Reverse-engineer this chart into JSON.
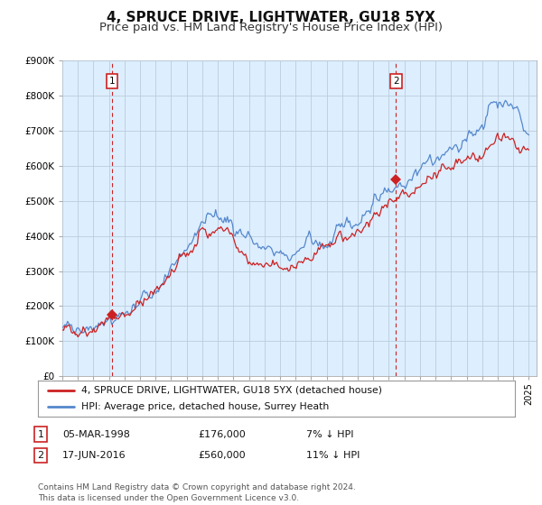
{
  "title": "4, SPRUCE DRIVE, LIGHTWATER, GU18 5YX",
  "subtitle": "Price paid vs. HM Land Registry's House Price Index (HPI)",
  "ylim": [
    0,
    900000
  ],
  "yticks": [
    0,
    100000,
    200000,
    300000,
    400000,
    500000,
    600000,
    700000,
    800000,
    900000
  ],
  "ytick_labels": [
    "£0",
    "£100K",
    "£200K",
    "£300K",
    "£400K",
    "£500K",
    "£600K",
    "£700K",
    "£800K",
    "£900K"
  ],
  "hpi_color": "#5588cc",
  "price_color": "#cc2222",
  "marker_color": "#cc2222",
  "purchase1_date": 1998.18,
  "purchase1_price": 176000,
  "purchase2_date": 2016.46,
  "purchase2_price": 560000,
  "legend_entry1": "4, SPRUCE DRIVE, LIGHTWATER, GU18 5YX (detached house)",
  "legend_entry2": "HPI: Average price, detached house, Surrey Heath",
  "table_row1": [
    "1",
    "05-MAR-1998",
    "£176,000",
    "7% ↓ HPI"
  ],
  "table_row2": [
    "2",
    "17-JUN-2016",
    "£560,000",
    "11% ↓ HPI"
  ],
  "footnote": "Contains HM Land Registry data © Crown copyright and database right 2024.\nThis data is licensed under the Open Government Licence v3.0.",
  "chart_bg": "#ddeeff",
  "fig_bg": "#ffffff",
  "grid_color": "#bbccdd",
  "title_fontsize": 11,
  "subtitle_fontsize": 9.5
}
